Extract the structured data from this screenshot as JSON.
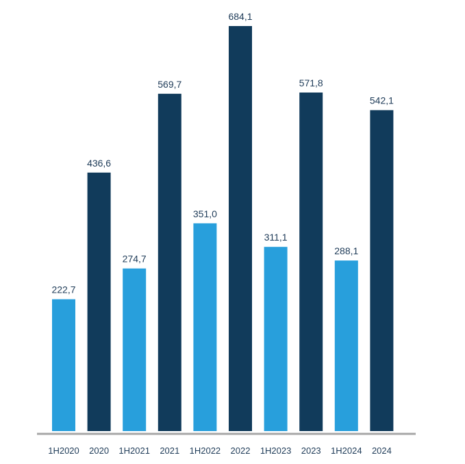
{
  "chart_data": {
    "type": "bar",
    "categories": [
      "1H2020",
      "2020",
      "1H2021",
      "2021",
      "1H2022",
      "2022",
      "1H2023",
      "2023",
      "1H2024",
      "2024"
    ],
    "values": [
      222.7,
      436.6,
      274.7,
      569.7,
      351.0,
      684.1,
      311.1,
      571.8,
      288.1,
      542.1
    ],
    "value_labels": [
      "222,7",
      "436,6",
      "274,7",
      "569,7",
      "351,0",
      "684,1",
      "311,1",
      "571,8",
      "288,1",
      "542,1"
    ],
    "bar_colors": [
      "#289fdc",
      "#113b5b",
      "#289fdc",
      "#113b5b",
      "#289fdc",
      "#113b5b",
      "#289fdc",
      "#113b5b",
      "#289fdc",
      "#113b5b"
    ],
    "title": "",
    "xlabel": "",
    "ylabel": "",
    "ylim": [
      0,
      684.1
    ],
    "grid": false,
    "legend": "none"
  },
  "colors": {
    "half_year_bar": "#289fdc",
    "full_year_bar": "#113b5b",
    "axis_line": "#a6a6a6",
    "label_text": "#1d3a57"
  }
}
